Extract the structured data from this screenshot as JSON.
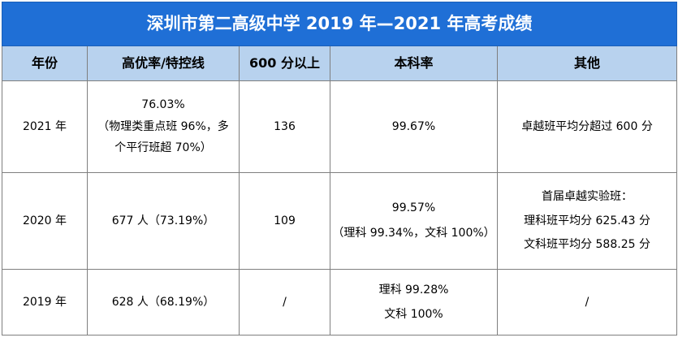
{
  "title": "深圳市第二高级中学 2019 年—2021 年高考成绩",
  "headers": [
    "年份",
    "高优率/特控线",
    "600 分以上",
    "本科率",
    "其他"
  ],
  "rows": [
    {
      "year": "2021 年",
      "high": [
        "76.03%",
        "（物理类重点班 96%，多",
        "个平行班超 70%）"
      ],
      "over600": "136",
      "undergrad": [
        "99.67%"
      ],
      "other": [
        "卓越班平均分超过 600 分"
      ]
    },
    {
      "year": "2020 年",
      "high": [
        "677 人（73.19%）"
      ],
      "over600": "109",
      "undergrad": [
        "99.57%",
        "（理科 99.34%，文科 100%）"
      ],
      "other": [
        "首届卓越实验班：",
        "理科班平均分 625.43 分",
        "文科班平均分 588.25 分"
      ]
    },
    {
      "year": "2019 年",
      "high": [
        "628 人（68.19%）"
      ],
      "over600": "/",
      "undergrad": [
        "理科 99.28%",
        "文科 100%"
      ],
      "other": [
        "/"
      ]
    }
  ]
}
